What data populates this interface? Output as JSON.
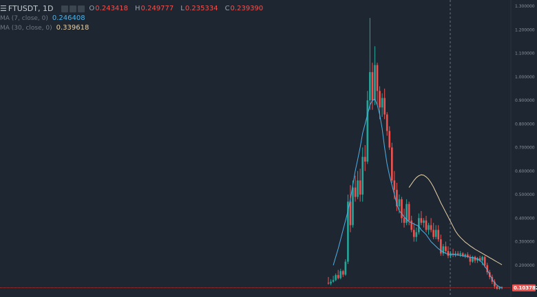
{
  "header": {
    "symbol": "FTUSDT",
    "interval": "1D",
    "ohlc": {
      "o_label": "O",
      "o": "0.243418",
      "h_label": "H",
      "h": "0.249777",
      "l_label": "L",
      "l": "0.235334",
      "c_label": "C",
      "c": "0.239390"
    }
  },
  "indicators": [
    {
      "name": "MA (7, close, 0)",
      "value": "0.246408",
      "color": "#4fb0e6"
    },
    {
      "name": "MA (30, close, 0)",
      "value": "0.339618",
      "color": "#e9d2a8"
    }
  ],
  "colors": {
    "background": "#1e2731",
    "up": "#26a69a",
    "down": "#ef5350",
    "ma7": "#4fb0e6",
    "ma30": "#e9d2a8",
    "price_line": "#ef5350",
    "crosshair": "#8a939e"
  },
  "chart_data": {
    "type": "candlestick",
    "title": "FTUSDT, 1D",
    "ylim": [
      0.1,
      1.3
    ],
    "y_ticks": [
      "1.300000",
      "1.200000",
      "1.100000",
      "1.000000",
      "0.900000",
      "0.800000",
      "0.700000",
      "0.600000",
      "0.500000",
      "0.400000",
      "0.300000",
      "0.200000"
    ],
    "current_price": "0.103782",
    "grid": false,
    "legend": "top-left",
    "candles": [
      [
        0.125,
        0.15,
        0.118,
        0.122
      ],
      [
        0.122,
        0.14,
        0.115,
        0.13
      ],
      [
        0.13,
        0.155,
        0.126,
        0.137
      ],
      [
        0.137,
        0.165,
        0.132,
        0.158
      ],
      [
        0.158,
        0.18,
        0.14,
        0.145
      ],
      [
        0.145,
        0.185,
        0.14,
        0.175
      ],
      [
        0.175,
        0.18,
        0.15,
        0.16
      ],
      [
        0.16,
        0.225,
        0.155,
        0.215
      ],
      [
        0.215,
        0.5,
        0.205,
        0.47
      ],
      [
        0.47,
        0.54,
        0.34,
        0.37
      ],
      [
        0.37,
        0.56,
        0.36,
        0.53
      ],
      [
        0.53,
        0.58,
        0.47,
        0.49
      ],
      [
        0.49,
        0.6,
        0.48,
        0.56
      ],
      [
        0.56,
        0.61,
        0.47,
        0.5
      ],
      [
        0.5,
        0.7,
        0.47,
        0.66
      ],
      [
        0.66,
        0.71,
        0.6,
        0.64
      ],
      [
        0.64,
        0.94,
        0.63,
        0.9
      ],
      [
        0.9,
        1.25,
        0.86,
        1.02
      ],
      [
        1.02,
        1.06,
        0.86,
        0.9
      ],
      [
        0.9,
        1.13,
        0.88,
        1.05
      ],
      [
        1.05,
        1.06,
        0.88,
        0.94
      ],
      [
        0.94,
        0.96,
        0.82,
        0.87
      ],
      [
        0.87,
        0.93,
        0.83,
        0.91
      ],
      [
        0.91,
        0.95,
        0.82,
        0.84
      ],
      [
        0.84,
        0.85,
        0.75,
        0.77
      ],
      [
        0.77,
        0.79,
        0.69,
        0.7
      ],
      [
        0.7,
        0.72,
        0.55,
        0.56
      ],
      [
        0.56,
        0.6,
        0.48,
        0.52
      ],
      [
        0.52,
        0.55,
        0.43,
        0.45
      ],
      [
        0.45,
        0.5,
        0.42,
        0.48
      ],
      [
        0.48,
        0.49,
        0.38,
        0.4
      ],
      [
        0.4,
        0.44,
        0.36,
        0.38
      ],
      [
        0.38,
        0.48,
        0.37,
        0.46
      ],
      [
        0.46,
        0.47,
        0.37,
        0.39
      ],
      [
        0.39,
        0.41,
        0.34,
        0.35
      ],
      [
        0.35,
        0.38,
        0.3,
        0.32
      ],
      [
        0.32,
        0.36,
        0.3,
        0.34
      ],
      [
        0.34,
        0.42,
        0.33,
        0.4
      ],
      [
        0.4,
        0.43,
        0.37,
        0.38
      ],
      [
        0.38,
        0.4,
        0.36,
        0.39
      ],
      [
        0.39,
        0.41,
        0.34,
        0.35
      ],
      [
        0.35,
        0.38,
        0.33,
        0.37
      ],
      [
        0.37,
        0.4,
        0.34,
        0.35
      ],
      [
        0.35,
        0.38,
        0.31,
        0.32
      ],
      [
        0.32,
        0.37,
        0.31,
        0.35
      ],
      [
        0.35,
        0.37,
        0.3,
        0.31
      ],
      [
        0.31,
        0.33,
        0.24,
        0.25
      ],
      [
        0.25,
        0.29,
        0.24,
        0.28
      ],
      [
        0.28,
        0.3,
        0.25,
        0.26
      ],
      [
        0.26,
        0.28,
        0.23,
        0.24
      ],
      [
        0.24,
        0.26,
        0.23,
        0.25
      ],
      [
        0.25,
        0.27,
        0.235,
        0.245
      ],
      [
        0.245,
        0.26,
        0.235,
        0.25
      ],
      [
        0.25,
        0.26,
        0.24,
        0.245
      ],
      [
        0.245,
        0.26,
        0.235,
        0.25
      ],
      [
        0.25,
        0.255,
        0.235,
        0.24
      ],
      [
        0.24,
        0.25,
        0.23,
        0.245
      ],
      [
        0.245,
        0.255,
        0.23,
        0.235
      ],
      [
        0.235,
        0.245,
        0.2,
        0.215
      ],
      [
        0.215,
        0.24,
        0.21,
        0.235
      ],
      [
        0.235,
        0.24,
        0.21,
        0.22
      ],
      [
        0.22,
        0.235,
        0.21,
        0.23
      ],
      [
        0.23,
        0.24,
        0.215,
        0.22
      ],
      [
        0.22,
        0.24,
        0.2,
        0.235
      ],
      [
        0.235,
        0.24,
        0.19,
        0.2
      ],
      [
        0.2,
        0.21,
        0.16,
        0.17
      ],
      [
        0.17,
        0.18,
        0.14,
        0.15
      ],
      [
        0.15,
        0.16,
        0.12,
        0.13
      ],
      [
        0.13,
        0.14,
        0.1,
        0.11
      ],
      [
        0.11,
        0.115,
        0.096,
        0.1
      ],
      [
        0.1,
        0.11,
        0.096,
        0.105
      ],
      [
        0.105,
        0.11,
        0.098,
        0.104
      ]
    ],
    "ma7": [
      0.2,
      0.235,
      0.27,
      0.31,
      0.35,
      0.39,
      0.43,
      0.48,
      0.54,
      0.6,
      0.65,
      0.7,
      0.76,
      0.8,
      0.84,
      0.88,
      0.9,
      0.905,
      0.88,
      0.84,
      0.78,
      0.7,
      0.63,
      0.58,
      0.54,
      0.5,
      0.46,
      0.43,
      0.42,
      0.405,
      0.395,
      0.385,
      0.38,
      0.375,
      0.37,
      0.365,
      0.35,
      0.34,
      0.33,
      0.315,
      0.3,
      0.29,
      0.28,
      0.27,
      0.262,
      0.256,
      0.25,
      0.247,
      0.246,
      0.245,
      0.244,
      0.243,
      0.242,
      0.24,
      0.238,
      0.236,
      0.234,
      0.232,
      0.23,
      0.226,
      0.22,
      0.21,
      0.195,
      0.18,
      0.16,
      0.14,
      0.125,
      0.115,
      0.108,
      0.104
    ],
    "ma30": [
      0.53,
      0.545,
      0.56,
      0.572,
      0.58,
      0.584,
      0.582,
      0.575,
      0.565,
      0.55,
      0.532,
      0.51,
      0.488,
      0.465,
      0.445,
      0.425,
      0.405,
      0.385,
      0.365,
      0.345,
      0.33,
      0.318,
      0.308,
      0.298,
      0.29,
      0.282,
      0.275,
      0.268,
      0.262,
      0.256,
      0.25,
      0.244,
      0.238,
      0.232,
      0.226,
      0.22,
      0.214,
      0.208,
      0.202
    ],
    "ma30_start_index": 33
  }
}
